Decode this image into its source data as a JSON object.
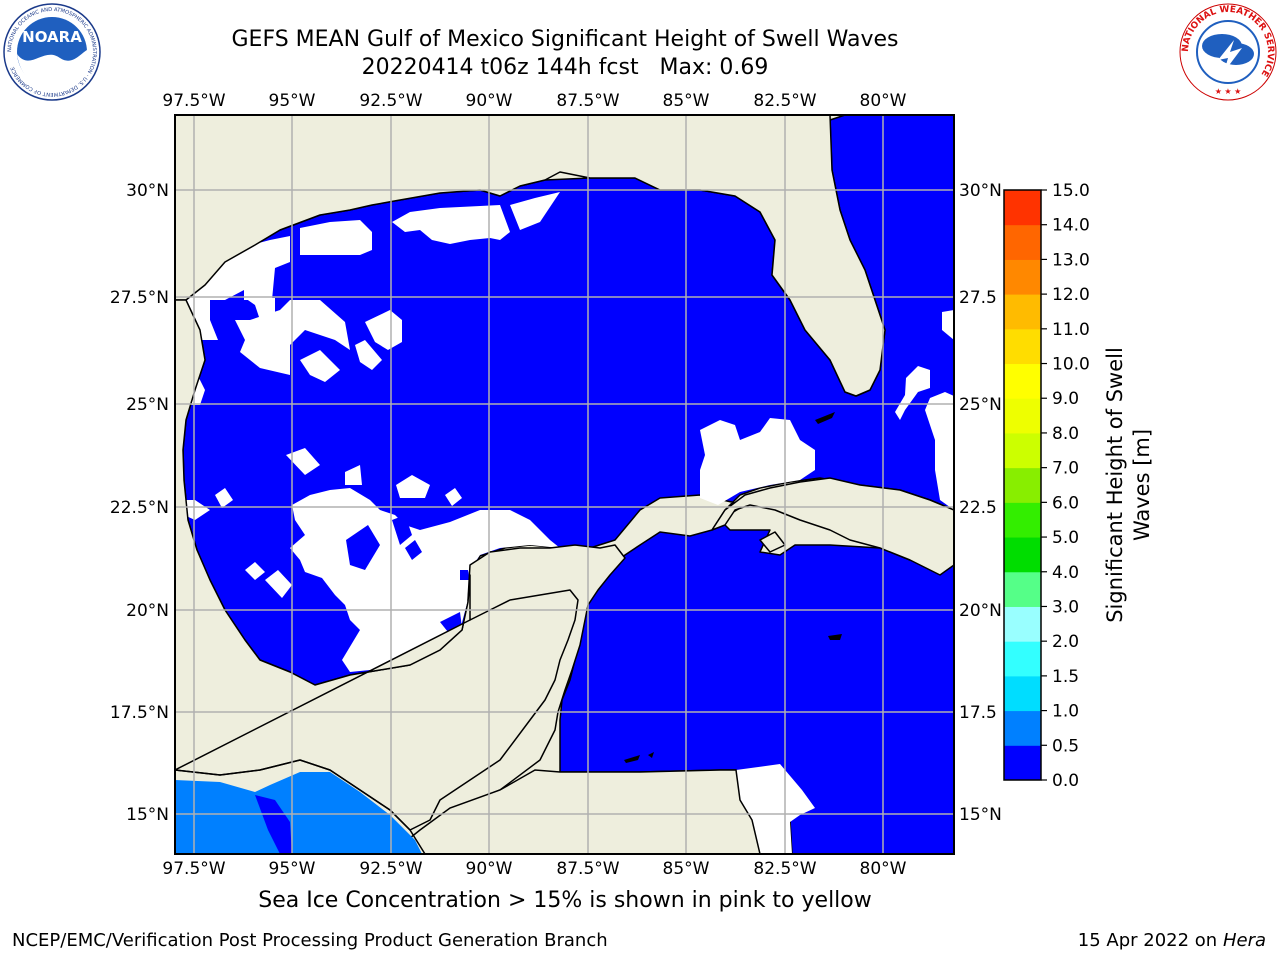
{
  "title": {
    "line1": "GEFS MEAN Gulf of Mexico Significant Height of Swell Waves",
    "line2": "20220414 t06z 144h fcst   Max: 0.69"
  },
  "logos": {
    "left": {
      "name": "NOARA",
      "ring_text": "NATIONAL OCEANIC AND ATMOSPHERIC ADMINISTRATION · U.S. DEPARTMENT OF COMMERCE"
    },
    "right": {
      "ring_text": "NATIONAL WEATHER SERVICE"
    }
  },
  "map": {
    "lon_range": [
      -98,
      -78
    ],
    "lat_range": [
      14,
      32
    ],
    "lon_ticks": [
      "97.5°W",
      "95°W",
      "92.5°W",
      "90°W",
      "87.5°W",
      "85°W",
      "82.5°W",
      "80°W"
    ],
    "lon_tick_values": [
      -97.5,
      -95,
      -92.5,
      -90,
      -87.5,
      -85,
      -82.5,
      -80
    ],
    "lat_ticks": [
      "15°N",
      "17.5°N",
      "20°N",
      "22.5°N",
      "25°N",
      "27.5°N",
      "30°N"
    ],
    "lat_tick_values": [
      15,
      17.5,
      20,
      22.5,
      25,
      27.5,
      30
    ],
    "lat_ticks_right": [
      "15°N",
      "17.5",
      "20°N",
      "22.5",
      "25°N",
      "27.5",
      "30°N"
    ],
    "grid": true,
    "colors": {
      "land": "#eeeedd",
      "ocean_field": "#0000ff",
      "no_data": "#ffffff",
      "swell_0_5": "#0080ff",
      "grid": "#b0b0b0"
    }
  },
  "colorbar": {
    "label": "Significant Height of Swell Waves [m]",
    "label_line1": "Significant Height of Swell",
    "label_line2": "Waves [m]",
    "tick_labels": [
      "0.0",
      "0.5",
      "1.0",
      "1.5",
      "2.0",
      "3.0",
      "4.0",
      "5.0",
      "6.0",
      "7.0",
      "8.0",
      "9.0",
      "10.0",
      "11.0",
      "12.0",
      "13.0",
      "14.0",
      "15.0"
    ],
    "colors": [
      "#0000ff",
      "#0080ff",
      "#00ddff",
      "#33ffff",
      "#99ffff",
      "#55ff88",
      "#00dd00",
      "#33ee00",
      "#88ee00",
      "#ccff00",
      "#eeff00",
      "#ffff00",
      "#ffdd00",
      "#ffbb00",
      "#ff8800",
      "#ff6600",
      "#ff3300"
    ]
  },
  "caption": "Sea Ice Concentration > 15% is shown in pink to yellow",
  "footer": {
    "left": "NCEP/EMC/Verification Post Processing Product Generation Branch",
    "right_date": "15 Apr 2022 on ",
    "right_machine": "Hera"
  }
}
